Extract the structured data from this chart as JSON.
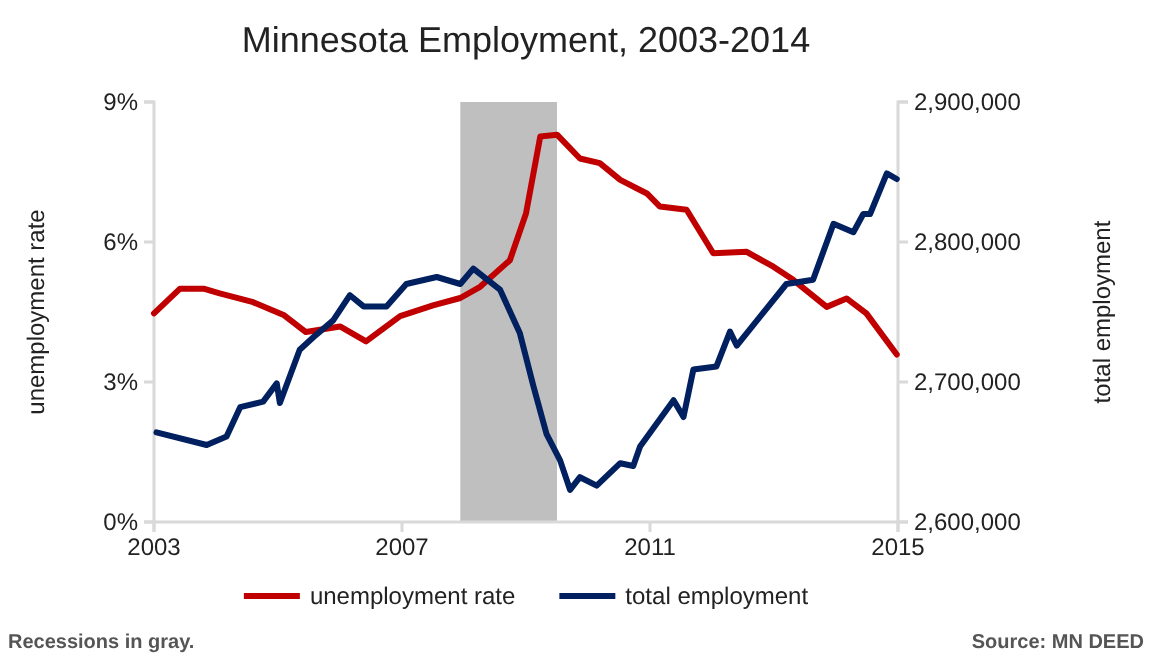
{
  "chart_data": {
    "type": "line",
    "title": "Minnesota Employment, 2003-2014",
    "ylabel": "unemployment rate",
    "y2label": "total employment",
    "xlim": [
      2003,
      2015
    ],
    "xticks": [
      2003,
      2007,
      2011,
      2015
    ],
    "ylim": [
      0,
      9
    ],
    "yticks": [
      {
        "value": 0,
        "label": "0%"
      },
      {
        "value": 3,
        "label": "3%"
      },
      {
        "value": 6,
        "label": "6%"
      },
      {
        "value": 9,
        "label": "9%"
      }
    ],
    "y2lim": [
      2600000,
      2900000
    ],
    "y2ticks": [
      {
        "value": 2600000,
        "label": "2,600,000"
      },
      {
        "value": 2700000,
        "label": "2,700,000"
      },
      {
        "value": 2800000,
        "label": "2,800,000"
      },
      {
        "value": 2900000,
        "label": "2,900,000"
      }
    ],
    "bands": [
      {
        "axis": "x",
        "from": 2007.94,
        "to": 2009.5,
        "color": "#bfbfbf"
      }
    ],
    "legend": "bottom",
    "grid": false,
    "line_style": "solid",
    "marker": "none",
    "series": [
      {
        "name": "unemployment rate",
        "color": "#c00000",
        "x": [
          2003.0,
          2003.42,
          2003.8,
          2004.06,
          2004.6,
          2005.1,
          2005.45,
          2006.0,
          2006.42,
          2006.97,
          2007.5,
          2007.94,
          2008.26,
          2008.74,
          2009.0,
          2009.23,
          2009.5,
          2009.87,
          2010.19,
          2010.52,
          2010.95,
          2011.16,
          2011.59,
          2012.02,
          2012.56,
          2012.99,
          2013.31,
          2013.85,
          2014.17,
          2014.49,
          2014.98
        ],
        "values": [
          4.47,
          5.0,
          5.0,
          4.9,
          4.71,
          4.43,
          4.07,
          4.19,
          3.87,
          4.41,
          4.64,
          4.8,
          5.04,
          5.61,
          6.61,
          8.26,
          8.3,
          7.79,
          7.69,
          7.33,
          7.04,
          6.76,
          6.69,
          5.76,
          5.79,
          5.47,
          5.19,
          4.61,
          4.79,
          4.47,
          3.59
        ]
      },
      {
        "name": "total employment",
        "color": "#002060",
        "axis": "y2",
        "x": [
          2003.04,
          2003.85,
          2004.17,
          2004.39,
          2004.76,
          2004.98,
          2005.03,
          2005.35,
          2005.57,
          2005.89,
          2006.16,
          2006.38,
          2006.75,
          2007.07,
          2007.56,
          2007.94,
          2008.15,
          2008.58,
          2008.9,
          2009.12,
          2009.33,
          2009.55,
          2009.71,
          2009.87,
          2010.14,
          2010.52,
          2010.73,
          2010.84,
          2011.38,
          2011.54,
          2011.7,
          2012.07,
          2012.29,
          2012.4,
          2013.2,
          2013.63,
          2013.96,
          2014.28,
          2014.44,
          2014.55,
          2014.82,
          2014.98
        ],
        "values": [
          2664000,
          2655000,
          2661000,
          2682000,
          2686000,
          2699000,
          2685000,
          2723000,
          2732000,
          2744000,
          2762000,
          2754000,
          2754000,
          2770000,
          2775000,
          2770000,
          2781000,
          2766000,
          2735000,
          2697000,
          2663000,
          2644000,
          2623000,
          2632000,
          2626000,
          2642000,
          2640000,
          2654000,
          2687000,
          2675000,
          2709000,
          2711000,
          2736000,
          2726000,
          2770000,
          2773000,
          2813000,
          2807000,
          2820000,
          2820000,
          2849000,
          2845000
        ]
      }
    ],
    "annotations": [
      "Recessions in gray.",
      "Source: MN DEED"
    ]
  }
}
